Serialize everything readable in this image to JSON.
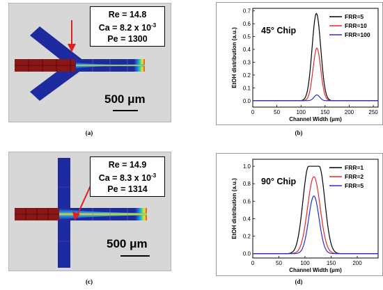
{
  "panels": {
    "a": {
      "caption": "(a)",
      "info": {
        "re": "Re = 14.8",
        "ca_base": "Ca = 8.2 x 10",
        "ca_exp": "-3",
        "pe": "Pe = 1300"
      },
      "scale_label": "500 μm"
    },
    "b": {
      "caption": "(b)",
      "chart_data": {
        "type": "line",
        "title": "45° Chip",
        "xlabel": "Channel Width (μm)",
        "ylabel": "EtOH distribution (a.u.)",
        "xlim": [
          0,
          260
        ],
        "ylim": [
          -0.05,
          0.72
        ],
        "xticks": [
          0,
          50,
          100,
          150,
          200,
          250
        ],
        "xtick_labels": [
          "0",
          "50",
          "100",
          "150",
          "200",
          "250"
        ],
        "yticks": [
          0.0,
          0.1,
          0.2,
          0.3,
          0.4,
          0.5,
          0.6,
          0.7
        ],
        "ytick_labels": [
          "0.0",
          "0.1",
          "0.2",
          "0.3",
          "0.4",
          "0.5",
          "0.6",
          "0.7"
        ],
        "legend_position": "top-right",
        "grid": false,
        "series": [
          {
            "name": "FRR=5",
            "color": "#000000",
            "center": 132,
            "peak": 0.68,
            "sigma": 9,
            "flat_top": 0
          },
          {
            "name": "FRR=10",
            "color": "#e8262a",
            "center": 133,
            "peak": 0.41,
            "sigma": 8,
            "flat_top": 0
          },
          {
            "name": "FRR=100",
            "color": "#2b2bd9",
            "center": 133,
            "peak": 0.045,
            "sigma": 6,
            "flat_top": 0
          }
        ]
      }
    },
    "c": {
      "caption": "(c)",
      "info": {
        "re": "Re = 14.9",
        "ca_base": "Ca = 8.3 x 10",
        "ca_exp": "-3",
        "pe": "Pe = 1314"
      },
      "scale_label": "500 μm"
    },
    "d": {
      "caption": "(d)",
      "chart_data": {
        "type": "line",
        "title": "90° Chip",
        "xlabel": "Channel Width (μm)",
        "ylabel": "EtOH distribution (a.u.)",
        "xlim": [
          0,
          240
        ],
        "ylim": [
          -0.05,
          1.08
        ],
        "xticks": [
          0,
          50,
          100,
          150,
          200
        ],
        "xtick_labels": [
          "0",
          "50",
          "100",
          "150",
          "200"
        ],
        "yticks": [
          0.0,
          0.2,
          0.4,
          0.6,
          0.8,
          1.0
        ],
        "ytick_labels": [
          "0.0",
          "0.2",
          "0.4",
          "0.6",
          "0.8",
          "1.0"
        ],
        "legend_position": "top-right",
        "grid": false,
        "series": [
          {
            "name": "FRR=1",
            "color": "#000000",
            "center": 117,
            "peak": 1.0,
            "sigma": 11,
            "flat_top": 20
          },
          {
            "name": "FRR=2",
            "color": "#e8262a",
            "center": 117,
            "peak": 0.88,
            "sigma": 12,
            "flat_top": 0
          },
          {
            "name": "FRR=5",
            "color": "#2b2bd9",
            "center": 117,
            "peak": 0.66,
            "sigma": 10,
            "flat_top": 0
          }
        ]
      }
    }
  }
}
